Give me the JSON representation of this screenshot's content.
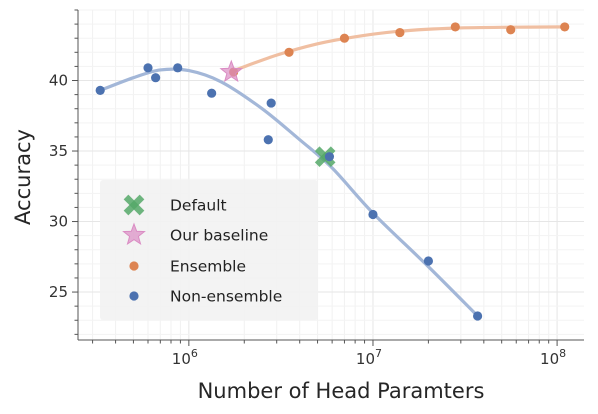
{
  "chart_data": {
    "type": "scatter",
    "xlabel": "Number of Head Paramters",
    "ylabel": "Accuracy",
    "xscale": "log",
    "xlim": [
      250000,
      140000000
    ],
    "ylim": [
      21.6,
      45.0
    ],
    "x_ticks": [
      {
        "value": 1000000,
        "base": "10",
        "exp": "6"
      },
      {
        "value": 10000000,
        "base": "10",
        "exp": "7"
      },
      {
        "value": 100000000,
        "base": "10",
        "exp": "8"
      }
    ],
    "y_ticks": [
      25,
      30,
      35,
      40
    ],
    "grid": true,
    "legend_position": "lower-left",
    "colors": {
      "ensemble": "#dd8452",
      "ensemble_line": "#f0bfa2",
      "non_ensemble": "#4c72b0",
      "non_ensemble_line": "#a3b7d8",
      "default": "#55a868",
      "baseline": "#da8bc3"
    },
    "series": [
      {
        "name": "Ensemble",
        "marker": "dot",
        "points": [
          [
            1750000,
            40.6
          ],
          [
            3500000,
            42.0
          ],
          [
            7000000,
            43.0
          ],
          [
            14000000,
            43.4
          ],
          [
            28000000,
            43.8
          ],
          [
            56000000,
            43.6
          ],
          [
            110000000,
            43.8
          ]
        ],
        "trend": [
          [
            1750000,
            40.7
          ],
          [
            3000000,
            41.8
          ],
          [
            5000000,
            42.6
          ],
          [
            8000000,
            43.1
          ],
          [
            14000000,
            43.5
          ],
          [
            28000000,
            43.72
          ],
          [
            60000000,
            43.78
          ],
          [
            110000000,
            43.8
          ]
        ]
      },
      {
        "name": "Non-ensemble",
        "marker": "dot",
        "points": [
          [
            330000,
            39.3
          ],
          [
            600000,
            40.9
          ],
          [
            660000,
            40.2
          ],
          [
            870000,
            40.9
          ],
          [
            1330000,
            39.1
          ],
          [
            2800000,
            38.4
          ],
          [
            2700000,
            35.8
          ],
          [
            5800000,
            34.6
          ],
          [
            10000000,
            30.5
          ],
          [
            20000000,
            27.2
          ],
          [
            37000000,
            23.3
          ]
        ],
        "trend": [
          [
            330000,
            39.3
          ],
          [
            500000,
            40.2
          ],
          [
            700000,
            40.75
          ],
          [
            1000000,
            40.7
          ],
          [
            1500000,
            39.9
          ],
          [
            2500000,
            38.0
          ],
          [
            4000000,
            35.8
          ],
          [
            6000000,
            33.8
          ],
          [
            10000000,
            30.6
          ],
          [
            20000000,
            26.8
          ],
          [
            37000000,
            23.3
          ]
        ]
      },
      {
        "name": "Default",
        "marker": "x",
        "points": [
          [
            5500000,
            34.6
          ]
        ]
      },
      {
        "name": "Our baseline",
        "marker": "star",
        "points": [
          [
            1700000,
            40.6
          ]
        ]
      }
    ],
    "legend": [
      "Default",
      "Our baseline",
      "Ensemble",
      "Non-ensemble"
    ]
  }
}
